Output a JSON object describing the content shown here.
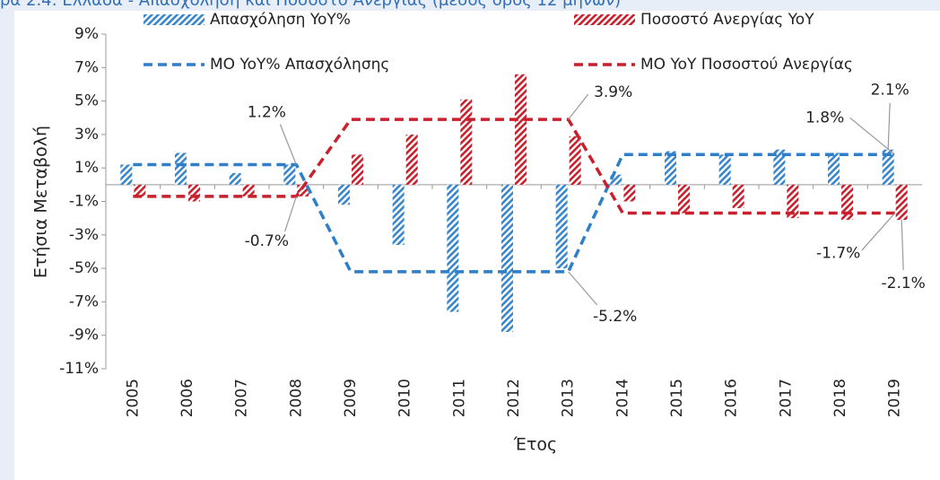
{
  "chart_data": {
    "type": "bar_line",
    "title": "ρα 2.4: Ελλάδα - Απασχόληση και Ποσοστό Ανεργίας (μέσος όρος 12 μηνών)",
    "y_label": "Ετήσια Μεταβολή",
    "x_label": "Έτος",
    "categories": [
      "2005",
      "2006",
      "2007",
      "2008",
      "2009",
      "2010",
      "2011",
      "2012",
      "2013",
      "2014",
      "2015",
      "2016",
      "2017",
      "2018",
      "2019"
    ],
    "series": [
      {
        "name": "Απασχόληση YoY%",
        "kind": "bar",
        "color": "#3a86cc",
        "values": [
          1.2,
          1.9,
          0.7,
          1.2,
          -1.2,
          -3.6,
          -7.6,
          -8.8,
          -5.0,
          0.6,
          2.0,
          1.8,
          2.1,
          1.9,
          2.1
        ],
        "value_labels": [
          null,
          null,
          null,
          null,
          null,
          null,
          null,
          null,
          null,
          null,
          null,
          null,
          null,
          null,
          "2.1%"
        ]
      },
      {
        "name": "Ποσοστό Ανεργίας YoY",
        "kind": "bar",
        "color": "#c8202c",
        "values": [
          -0.7,
          -1.0,
          -0.7,
          -0.7,
          1.8,
          3.0,
          5.1,
          6.6,
          2.9,
          -1.0,
          -1.7,
          -1.4,
          -2.0,
          -2.1,
          -2.1
        ],
        "value_labels": [
          null,
          null,
          null,
          null,
          null,
          null,
          null,
          null,
          null,
          null,
          null,
          null,
          null,
          null,
          "-2.1%"
        ]
      },
      {
        "name": "ΜΟ YoY% Απασχόλησης",
        "kind": "line",
        "color": "#2f7fc8",
        "values": [
          1.2,
          1.2,
          1.2,
          1.2,
          -5.2,
          -5.2,
          -5.2,
          -5.2,
          -5.2,
          1.8,
          1.8,
          1.8,
          1.8,
          1.8,
          1.8
        ],
        "value_labels": [
          null,
          null,
          null,
          "1.2%",
          null,
          null,
          null,
          null,
          "-5.2%",
          null,
          null,
          null,
          null,
          null,
          "1.8%"
        ]
      },
      {
        "name": "ΜΟ YoY Ποσοστού Ανεργίας",
        "kind": "line",
        "color": "#c8202c",
        "values": [
          -0.7,
          -0.7,
          -0.7,
          -0.7,
          3.9,
          3.9,
          3.9,
          3.9,
          3.9,
          -1.7,
          -1.7,
          -1.7,
          -1.7,
          -1.7,
          -1.7
        ],
        "value_labels": [
          null,
          null,
          null,
          "-0.7%",
          null,
          null,
          null,
          null,
          "3.9%",
          null,
          null,
          null,
          null,
          null,
          "-1.7%"
        ]
      }
    ],
    "ylim": [
      -11,
      9
    ],
    "yticks": [
      {
        "value": -11,
        "label": "-11%"
      },
      {
        "value": -9,
        "label": "-9%"
      },
      {
        "value": -7,
        "label": "-7%"
      },
      {
        "value": -5,
        "label": "-5%"
      },
      {
        "value": -3,
        "label": "-3%"
      },
      {
        "value": -1,
        "label": "-1%"
      },
      {
        "value": 1,
        "label": "1%"
      },
      {
        "value": 3,
        "label": "3%"
      },
      {
        "value": 5,
        "label": "5%"
      },
      {
        "value": 7,
        "label": "7%"
      },
      {
        "value": 9,
        "label": "9%"
      }
    ]
  }
}
